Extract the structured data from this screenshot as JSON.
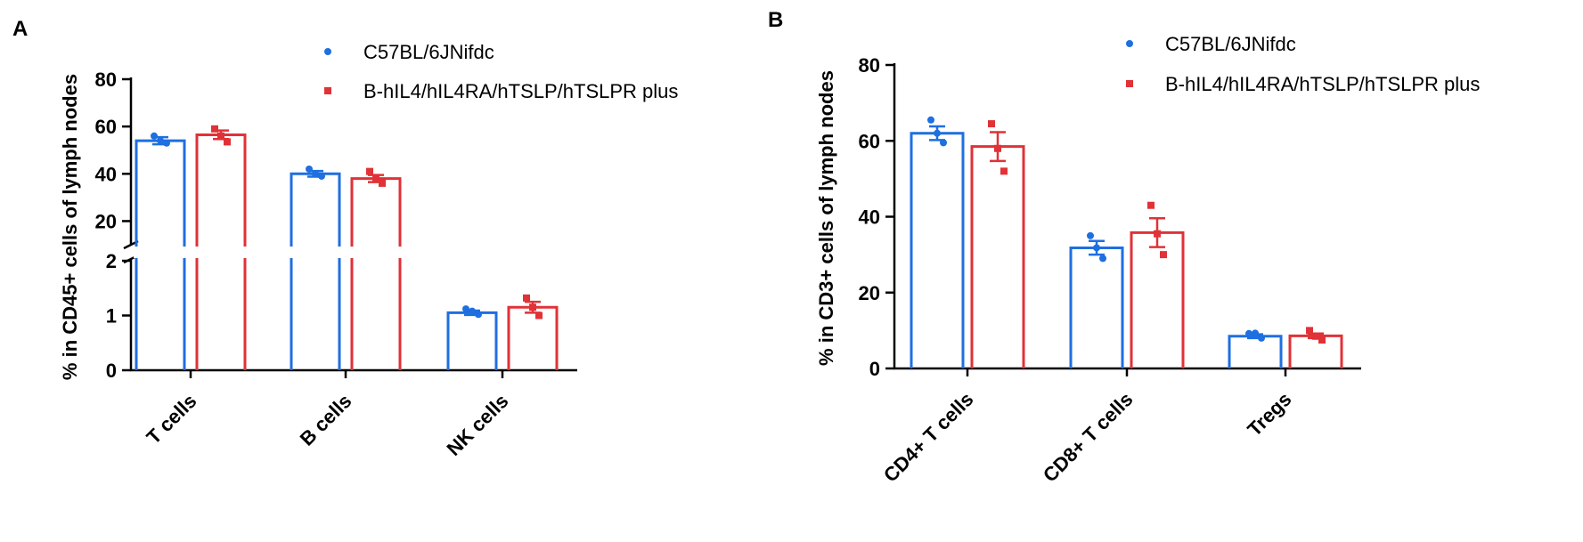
{
  "colors": {
    "wt": "#1E6FE0",
    "hu": "#E03237",
    "axis": "#000000"
  },
  "legend": {
    "series1": "C57BL/6JNifdc",
    "series2": "B-hIL4/hIL4RA/hTSLP/hTSLPR plus"
  },
  "chart_data": [
    {
      "panel": "A",
      "type": "bar",
      "ylabel": "% in CD45+ cells of lymph nodes",
      "axis_break": true,
      "ylim_lower": [
        0,
        2
      ],
      "ylim_upper": [
        10,
        80
      ],
      "yticks_lower": [
        "0",
        "1",
        "2"
      ],
      "yticks_upper": [
        "20",
        "40",
        "60",
        "80"
      ],
      "categories": [
        "T cells",
        "B cells",
        "NK cells"
      ],
      "series": [
        {
          "name": "C57BL/6JNifdc",
          "values": [
            54,
            40,
            1.05
          ],
          "sem": [
            1.5,
            1.2,
            0.04
          ],
          "points": [
            [
              54,
              56,
              53
            ],
            [
              40,
              42,
              39
            ],
            [
              1.08,
              1.12,
              1.02
            ]
          ]
        },
        {
          "name": "B-hIL4/hIL4RA/hTSLP/hTSLPR plus",
          "values": [
            56.5,
            38,
            1.15
          ],
          "sem": [
            1.8,
            1.5,
            0.1
          ],
          "points": [
            [
              56,
              59,
              53.5
            ],
            [
              38,
              41,
              36
            ],
            [
              1.15,
              1.32,
              1.0
            ]
          ]
        }
      ]
    },
    {
      "panel": "B",
      "type": "bar",
      "ylabel": "% in CD3+ cells of lymph nodes",
      "ylim": [
        0,
        80
      ],
      "yticks": [
        "0",
        "20",
        "40",
        "60",
        "80"
      ],
      "categories": [
        "CD4+ T cells",
        "CD8+ T cells",
        "Tregs"
      ],
      "series": [
        {
          "name": "C57BL/6JNifdc",
          "values": [
            62,
            31.8,
            8.5
          ],
          "sem": [
            1.8,
            1.8,
            0.5
          ],
          "points": [
            [
              62,
              65.5,
              59.5
            ],
            [
              31.8,
              35,
              29
            ],
            [
              9.3,
              9.2,
              8.0
            ]
          ]
        },
        {
          "name": "B-hIL4/hIL4RA/hTSLP/hTSLPR plus",
          "values": [
            58.5,
            35.8,
            8.6
          ],
          "sem": [
            3.8,
            3.8,
            0.6
          ],
          "points": [
            [
              58,
              64.5,
              52
            ],
            [
              35.5,
              43,
              30
            ],
            [
              8.5,
              10,
              7.5
            ]
          ]
        }
      ]
    }
  ]
}
